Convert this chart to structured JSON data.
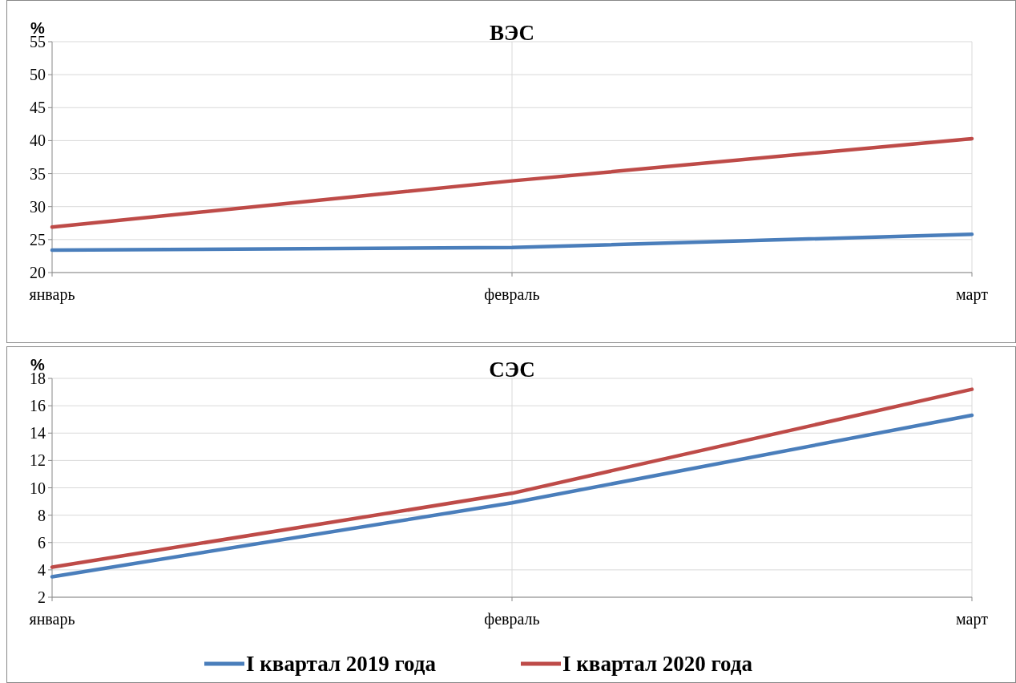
{
  "chart_data": [
    {
      "type": "line",
      "title": "ВЭС",
      "ylabel": "%",
      "categories": [
        "январь",
        "февраль",
        "март"
      ],
      "series": [
        {
          "color": "#4a7ebb",
          "values": [
            23.4,
            23.8,
            25.8
          ]
        },
        {
          "color": "#be4b48",
          "values": [
            26.9,
            33.9,
            40.3
          ]
        }
      ],
      "ylim": [
        20,
        55
      ],
      "yticks": [
        20,
        25,
        30,
        35,
        40,
        45,
        50,
        55
      ],
      "grid": true,
      "legend": false,
      "marker": "none",
      "line_style": "solid"
    },
    {
      "type": "line",
      "title": "СЭС",
      "ylabel": "%",
      "categories": [
        "январь",
        "февраль",
        "март"
      ],
      "series": [
        {
          "name": "I квартал 2019 года",
          "color": "#4a7ebb",
          "values": [
            3.5,
            8.9,
            15.3
          ]
        },
        {
          "name": "I квартал 2020 года",
          "color": "#be4b48",
          "values": [
            4.2,
            9.6,
            17.2
          ]
        }
      ],
      "ylim": [
        2,
        18
      ],
      "yticks": [
        2,
        4,
        6,
        8,
        10,
        12,
        14,
        16,
        18
      ],
      "grid": true,
      "legend": "bottom",
      "marker": "none",
      "line_style": "solid"
    }
  ]
}
